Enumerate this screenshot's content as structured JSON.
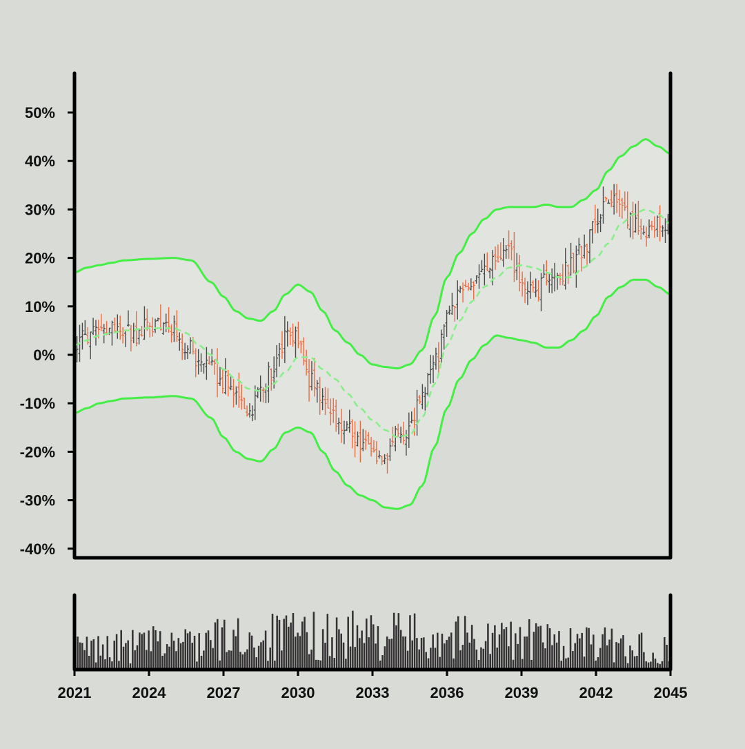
{
  "chart_data": {
    "type": "candlestick",
    "title": "",
    "xlabel": "",
    "ylabel": "",
    "x_ticks": [
      "2021",
      "2024",
      "2027",
      "2030",
      "2033",
      "2036",
      "2039",
      "2042",
      "2045"
    ],
    "x_range": [
      2021,
      2045
    ],
    "y_ticks": [
      "50%",
      "40%",
      "30%",
      "20%",
      "10%",
      "0%",
      "-10%",
      "-20%",
      "-30%",
      "-40%"
    ],
    "y_range": [
      -40,
      55
    ],
    "y_unit": "%",
    "grid": false,
    "legend": "none",
    "colors": {
      "up_candle": "#4a4a4a",
      "down_candle": "#f06a40",
      "band": "#44ee44",
      "middle_band": "#88ee88",
      "band_fill": "#e2e4e0",
      "volume": "#333132",
      "axis": "#000000",
      "background": "#d8dbd6"
    },
    "series": [
      {
        "kind": "bollinger_upper",
        "points": [
          [
            2021.0,
            17
          ],
          [
            2021.5,
            18
          ],
          [
            2022,
            18.5
          ],
          [
            2022.5,
            19
          ],
          [
            2023,
            19.5
          ],
          [
            2024,
            19.8
          ],
          [
            2025,
            20
          ],
          [
            2025.7,
            19.5
          ],
          [
            2026.5,
            15
          ],
          [
            2027,
            12
          ],
          [
            2027.5,
            9
          ],
          [
            2028,
            7.5
          ],
          [
            2028.5,
            7
          ],
          [
            2029,
            9
          ],
          [
            2029.5,
            12.5
          ],
          [
            2030,
            14.5
          ],
          [
            2030.5,
            13
          ],
          [
            2031,
            9
          ],
          [
            2031.5,
            5
          ],
          [
            2032,
            2.5
          ],
          [
            2032.5,
            0
          ],
          [
            2033,
            -2
          ],
          [
            2033.5,
            -2.5
          ],
          [
            2034,
            -2.8
          ],
          [
            2034.5,
            -2
          ],
          [
            2035,
            1
          ],
          [
            2035.5,
            8
          ],
          [
            2036,
            16
          ],
          [
            2036.5,
            21
          ],
          [
            2037,
            25
          ],
          [
            2037.5,
            28
          ],
          [
            2038,
            30
          ],
          [
            2038.5,
            30.5
          ],
          [
            2039,
            30.5
          ],
          [
            2039.5,
            30.5
          ],
          [
            2040,
            31
          ],
          [
            2040.5,
            30.5
          ],
          [
            2041,
            30.5
          ],
          [
            2041.5,
            32
          ],
          [
            2042,
            34
          ],
          [
            2042.5,
            38
          ],
          [
            2043,
            41
          ],
          [
            2043.5,
            43
          ],
          [
            2044,
            44.5
          ],
          [
            2044.5,
            43
          ],
          [
            2045,
            41.5
          ]
        ]
      },
      {
        "kind": "bollinger_middle",
        "points": [
          [
            2021.0,
            2
          ],
          [
            2021.5,
            3
          ],
          [
            2022,
            4
          ],
          [
            2022.5,
            4.5
          ],
          [
            2023,
            5
          ],
          [
            2024,
            5.5
          ],
          [
            2025,
            5.5
          ],
          [
            2025.5,
            4.5
          ],
          [
            2026,
            2
          ],
          [
            2026.5,
            0
          ],
          [
            2027,
            -3
          ],
          [
            2027.5,
            -5
          ],
          [
            2028,
            -7
          ],
          [
            2028.5,
            -7.5
          ],
          [
            2029,
            -6
          ],
          [
            2029.5,
            -3.5
          ],
          [
            2030,
            -0.5
          ],
          [
            2030.5,
            -0.5
          ],
          [
            2031,
            -3
          ],
          [
            2031.5,
            -5
          ],
          [
            2032,
            -8
          ],
          [
            2032.5,
            -11
          ],
          [
            2033,
            -13.5
          ],
          [
            2033.5,
            -15.5
          ],
          [
            2034,
            -17
          ],
          [
            2034.5,
            -16.5
          ],
          [
            2035,
            -13
          ],
          [
            2035.5,
            -6
          ],
          [
            2036,
            2
          ],
          [
            2036.5,
            7
          ],
          [
            2037,
            11
          ],
          [
            2037.5,
            14
          ],
          [
            2038,
            16
          ],
          [
            2038.5,
            18
          ],
          [
            2039,
            18.5
          ],
          [
            2039.5,
            18
          ],
          [
            2040,
            17
          ],
          [
            2040.5,
            16
          ],
          [
            2041,
            16
          ],
          [
            2041.5,
            18
          ],
          [
            2042,
            20
          ],
          [
            2042.5,
            23
          ],
          [
            2043,
            27
          ],
          [
            2043.5,
            29
          ],
          [
            2044,
            30
          ],
          [
            2044.5,
            29
          ],
          [
            2045,
            27
          ]
        ]
      },
      {
        "kind": "bollinger_lower",
        "points": [
          [
            2021.0,
            -12
          ],
          [
            2021.5,
            -11
          ],
          [
            2022,
            -10
          ],
          [
            2022.5,
            -9.5
          ],
          [
            2023,
            -9
          ],
          [
            2024,
            -8.8
          ],
          [
            2025,
            -8.5
          ],
          [
            2025.7,
            -9
          ],
          [
            2026.5,
            -13
          ],
          [
            2027,
            -17
          ],
          [
            2027.5,
            -20
          ],
          [
            2028,
            -21.5
          ],
          [
            2028.5,
            -22
          ],
          [
            2029,
            -19.5
          ],
          [
            2029.5,
            -16
          ],
          [
            2030,
            -15
          ],
          [
            2030.5,
            -16
          ],
          [
            2031,
            -20
          ],
          [
            2031.5,
            -24
          ],
          [
            2032,
            -27
          ],
          [
            2032.5,
            -29
          ],
          [
            2033,
            -30
          ],
          [
            2033.5,
            -31.5
          ],
          [
            2034,
            -31.8
          ],
          [
            2034.5,
            -31
          ],
          [
            2035,
            -27
          ],
          [
            2035.5,
            -19
          ],
          [
            2036,
            -11
          ],
          [
            2036.5,
            -5
          ],
          [
            2037,
            -1
          ],
          [
            2037.5,
            2
          ],
          [
            2038,
            4
          ],
          [
            2038.5,
            3.5
          ],
          [
            2039,
            3
          ],
          [
            2039.5,
            2.5
          ],
          [
            2040,
            1.5
          ],
          [
            2040.5,
            1.5
          ],
          [
            2041,
            3
          ],
          [
            2041.5,
            5
          ],
          [
            2042,
            8
          ],
          [
            2042.5,
            12
          ],
          [
            2043,
            14
          ],
          [
            2043.5,
            15.5
          ],
          [
            2044,
            15.5
          ],
          [
            2044.5,
            14
          ],
          [
            2045,
            12.5
          ]
        ]
      },
      {
        "kind": "price_path",
        "points": [
          [
            2021.0,
            2
          ],
          [
            2021.5,
            4
          ],
          [
            2022,
            4
          ],
          [
            2022.5,
            6
          ],
          [
            2023,
            5
          ],
          [
            2023.5,
            4
          ],
          [
            2024,
            6
          ],
          [
            2024.5,
            7
          ],
          [
            2025,
            5
          ],
          [
            2025.5,
            2
          ],
          [
            2026,
            -2
          ],
          [
            2026.5,
            -3
          ],
          [
            2027,
            -5
          ],
          [
            2027.5,
            -8
          ],
          [
            2028,
            -12
          ],
          [
            2028.5,
            -7
          ],
          [
            2029,
            -3
          ],
          [
            2029.5,
            3
          ],
          [
            2030,
            3
          ],
          [
            2030.5,
            -5
          ],
          [
            2031,
            -9
          ],
          [
            2031.5,
            -13
          ],
          [
            2032,
            -15
          ],
          [
            2032.5,
            -18
          ],
          [
            2033,
            -20
          ],
          [
            2033.5,
            -21
          ],
          [
            2034,
            -17
          ],
          [
            2034.5,
            -15
          ],
          [
            2035,
            -8
          ],
          [
            2035.5,
            -2
          ],
          [
            2036,
            7
          ],
          [
            2036.5,
            13
          ],
          [
            2037,
            15
          ],
          [
            2037.5,
            17
          ],
          [
            2038,
            19
          ],
          [
            2038.5,
            21
          ],
          [
            2039,
            15
          ],
          [
            2039.5,
            12
          ],
          [
            2040,
            16
          ],
          [
            2040.5,
            16
          ],
          [
            2041,
            19
          ],
          [
            2041.5,
            22
          ],
          [
            2042,
            27
          ],
          [
            2042.5,
            33
          ],
          [
            2043,
            29
          ],
          [
            2043.5,
            27
          ],
          [
            2044,
            26
          ],
          [
            2044.5,
            27
          ],
          [
            2045,
            26
          ]
        ]
      }
    ],
    "candle_count": 220,
    "volume_bar_count": 260
  }
}
